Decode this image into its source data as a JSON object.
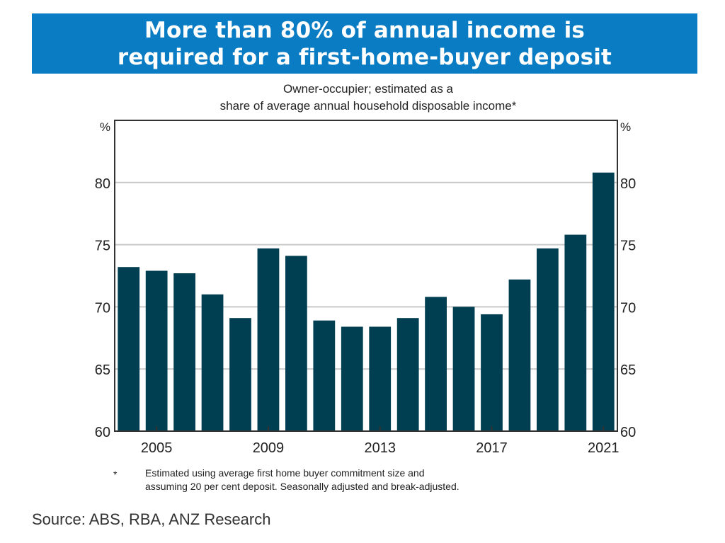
{
  "banner": {
    "line1": "More than 80% of annual income is",
    "line2": "required for a first-home-buyer deposit"
  },
  "chart_data": {
    "type": "bar",
    "subtitle_line1": "Owner-occupier; estimated as a",
    "subtitle_line2": "share of average annual household disposable income*",
    "unit_label": "%",
    "x_tick_labels": [
      "2005",
      "2009",
      "2013",
      "2017",
      "2021"
    ],
    "categories": [
      "2004",
      "2005",
      "2006",
      "2007",
      "2008",
      "2009",
      "2010",
      "2011",
      "2012",
      "2013",
      "2014",
      "2015",
      "2016",
      "2017",
      "2018",
      "2019",
      "2020",
      "2021"
    ],
    "values": [
      73.2,
      72.9,
      72.7,
      71.0,
      69.1,
      74.7,
      74.1,
      68.9,
      68.4,
      68.4,
      69.1,
      70.8,
      70.0,
      69.4,
      72.2,
      74.7,
      75.8,
      80.8
    ],
    "yticks": [
      60,
      65,
      70,
      75,
      80
    ],
    "ylim": [
      60,
      85
    ],
    "grid": true,
    "bar_color": "#003e52"
  },
  "footnote": {
    "star": "*",
    "line1": "Estimated using average first home buyer commitment size and",
    "line2": "assuming 20 per cent deposit. Seasonally adjusted and break-adjusted."
  },
  "source": "Source: ABS, RBA, ANZ Research"
}
